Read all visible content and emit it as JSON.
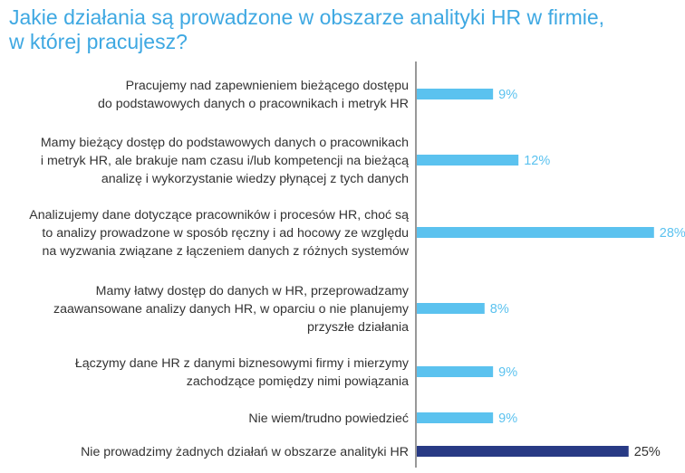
{
  "title_lines": [
    "Jakie działania są prowadzone w obszarze analityki HR w firmie,",
    "w której pracujesz?"
  ],
  "colors": {
    "title": "#3ea8e2",
    "bar_default": "#5bc2ef",
    "bar_highlight": "#283a85",
    "axis": "#555555",
    "text": "#333333"
  },
  "chart_data": {
    "type": "bar",
    "orientation": "horizontal",
    "title": "Jakie działania są prowadzone w obszarze analityki HR w firmie, w której pracujesz?",
    "categories": [
      [
        "Pracujemy nad zapewnieniem bieżącego dostępu",
        "do podstawowych danych o pracownikach i metryk HR"
      ],
      [
        "Mamy bieżący dostęp do podstawowych danych o pracownikach",
        "i metryk HR, ale brakuje nam czasu i/lub kompetencji na bieżącą",
        "analizę i wykorzystanie wiedzy płynącej z tych danych"
      ],
      [
        "Analizujemy dane dotyczące pracowników i procesów HR, choć są",
        "to analizy prowadzone w sposób ręczny i ad hocowy ze względu",
        "na wyzwania związane z łączeniem danych z różnych systemów"
      ],
      [
        "Mamy łatwy dostęp do danych w HR, przeprowadzamy",
        "zaawansowane analizy danych HR, w oparciu o nie planujemy",
        "przyszłe działania"
      ],
      [
        "Łączymy dane HR z danymi biznesowymi firmy i mierzymy",
        "zachodzące pomiędzy nimi powiązania"
      ],
      [
        "Nie wiem/trudno powiedzieć"
      ],
      [
        "Nie prowadzimy żadnych działań w obszarze analityki HR"
      ]
    ],
    "values": [
      9,
      12,
      28,
      8,
      9,
      9,
      25
    ],
    "value_labels": [
      "9%",
      "12%",
      "28%",
      "8%",
      "9%",
      "9%",
      "25%"
    ],
    "highlight_index": 6,
    "xlim": [
      0,
      28
    ],
    "grid": false,
    "legend": "none"
  }
}
